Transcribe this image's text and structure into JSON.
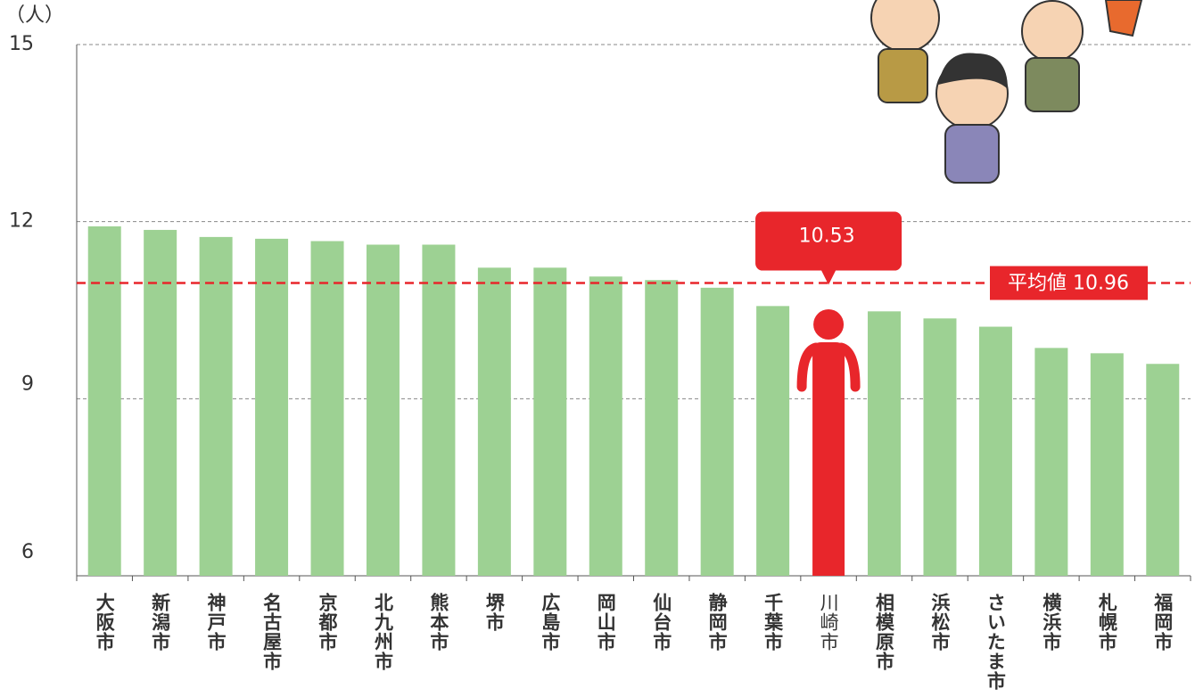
{
  "chart_data": {
    "type": "bar",
    "y_label": "（人）",
    "categories": [
      "大阪市",
      "新潟市",
      "神戸市",
      "名古屋市",
      "京都市",
      "北九州市",
      "熊本市",
      "堺市",
      "広島市",
      "岡山市",
      "仙台市",
      "静岡市",
      "千葉市",
      "川崎市",
      "相模原市",
      "浜松市",
      "さいたま市",
      "横浜市",
      "札幌市",
      "福岡市"
    ],
    "values": [
      11.92,
      11.86,
      11.74,
      11.71,
      11.67,
      11.61,
      11.61,
      11.22,
      11.22,
      11.07,
      11.01,
      10.88,
      10.57,
      10.53,
      10.48,
      10.36,
      10.22,
      9.86,
      9.77,
      9.59
    ],
    "colors": [
      "#9dd193",
      "#9dd193",
      "#9dd193",
      "#9dd193",
      "#9dd193",
      "#9dd193",
      "#9dd193",
      "#9dd193",
      "#9dd193",
      "#9dd193",
      "#9dd193",
      "#9dd193",
      "#9dd193",
      "#e8262b",
      "#9dd193",
      "#9dd193",
      "#9dd193",
      "#9dd193",
      "#9dd193",
      "#9dd193"
    ],
    "average": {
      "value": 10.96,
      "label": "平均値 10.96"
    },
    "average_color": "#e8262b",
    "ylim": [
      6,
      15
    ],
    "yticks": [
      6,
      9,
      12,
      15
    ],
    "grid": true
  }
}
